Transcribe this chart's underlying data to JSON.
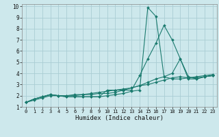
{
  "xlabel": "Humidex (Indice chaleur)",
  "bg_color": "#cde8ec",
  "grid_color": "#aacdd4",
  "line_color": "#1a7a6e",
  "xlim": [
    -0.5,
    23.5
  ],
  "ylim": [
    1,
    10.2
  ],
  "xticks": [
    0,
    1,
    2,
    3,
    4,
    5,
    6,
    7,
    8,
    9,
    10,
    11,
    12,
    13,
    14,
    15,
    16,
    17,
    18,
    19,
    20,
    21,
    22,
    23
  ],
  "yticks": [
    1,
    2,
    3,
    4,
    5,
    6,
    7,
    8,
    9,
    10
  ],
  "series": [
    {
      "x": [
        0,
        1,
        2,
        3,
        4,
        5,
        6,
        7,
        8,
        9,
        10,
        11,
        12,
        13,
        14,
        15,
        16,
        17,
        18,
        19,
        20,
        21,
        22,
        23
      ],
      "y": [
        1.4,
        1.7,
        1.9,
        2.1,
        2.0,
        1.9,
        1.9,
        1.9,
        1.9,
        1.9,
        2.0,
        2.1,
        2.2,
        2.4,
        2.5,
        9.9,
        9.1,
        3.7,
        3.5,
        3.5,
        3.6,
        3.7,
        3.8,
        3.9
      ]
    },
    {
      "x": [
        0,
        1,
        2,
        3,
        4,
        5,
        6,
        7,
        8,
        9,
        10,
        11,
        12,
        13,
        14,
        15,
        16,
        17,
        18,
        19,
        20,
        21,
        22,
        23
      ],
      "y": [
        1.4,
        1.7,
        1.9,
        2.1,
        2.0,
        1.9,
        1.9,
        1.9,
        1.9,
        1.9,
        2.5,
        2.5,
        2.5,
        2.5,
        3.8,
        5.3,
        6.7,
        8.3,
        7.0,
        5.3,
        3.7,
        3.5,
        3.7,
        3.8
      ]
    },
    {
      "x": [
        0,
        1,
        2,
        3,
        4,
        5,
        6,
        7,
        8,
        9,
        10,
        11,
        12,
        13,
        14,
        15,
        16,
        17,
        18,
        19,
        20,
        21,
        22,
        23
      ],
      "y": [
        1.4,
        1.7,
        1.9,
        2.1,
        2.0,
        2.0,
        2.0,
        2.1,
        2.1,
        2.2,
        2.2,
        2.3,
        2.5,
        2.7,
        2.9,
        3.2,
        3.5,
        3.7,
        4.0,
        5.3,
        3.5,
        3.5,
        3.7,
        3.8
      ]
    },
    {
      "x": [
        0,
        1,
        2,
        3,
        4,
        5,
        6,
        7,
        8,
        9,
        10,
        11,
        12,
        13,
        14,
        15,
        16,
        17,
        18,
        19,
        20,
        21,
        22,
        23
      ],
      "y": [
        1.4,
        1.6,
        1.8,
        2.0,
        2.0,
        2.0,
        2.1,
        2.1,
        2.2,
        2.3,
        2.4,
        2.5,
        2.6,
        2.7,
        2.9,
        3.0,
        3.2,
        3.4,
        3.6,
        3.7,
        3.6,
        3.6,
        3.7,
        3.8
      ]
    }
  ]
}
